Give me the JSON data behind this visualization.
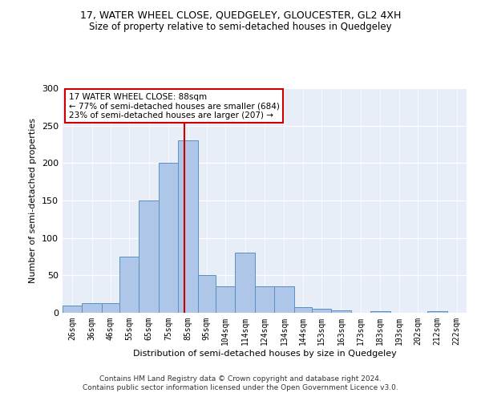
{
  "title": "17, WATER WHEEL CLOSE, QUEDGELEY, GLOUCESTER, GL2 4XH",
  "subtitle": "Size of property relative to semi-detached houses in Quedgeley",
  "xlabel": "Distribution of semi-detached houses by size in Quedgeley",
  "ylabel": "Number of semi-detached properties",
  "footer1": "Contains HM Land Registry data © Crown copyright and database right 2024.",
  "footer2": "Contains public sector information licensed under the Open Government Licence v3.0.",
  "annotation_title": "17 WATER WHEEL CLOSE: 88sqm",
  "annotation_line1": "← 77% of semi-detached houses are smaller (684)",
  "annotation_line2": "23% of semi-detached houses are larger (207) →",
  "property_size": 88,
  "bar_left_edges": [
    26,
    36,
    46,
    55,
    65,
    75,
    85,
    95,
    104,
    114,
    124,
    134,
    144,
    153,
    163,
    173,
    183,
    193,
    202,
    212,
    222
  ],
  "bar_heights": [
    10,
    13,
    13,
    75,
    150,
    200,
    230,
    50,
    35,
    80,
    35,
    35,
    7,
    5,
    3,
    0,
    2,
    0,
    0,
    2,
    0
  ],
  "bar_color": "#aec6e8",
  "bar_edge_color": "#5a8fc0",
  "vline_color": "#cc0000",
  "vline_x": 88,
  "annotation_box_color": "#cc0000",
  "background_color": "#e8eef8",
  "ylim": [
    0,
    300
  ],
  "yticks": [
    0,
    50,
    100,
    150,
    200,
    250,
    300
  ]
}
